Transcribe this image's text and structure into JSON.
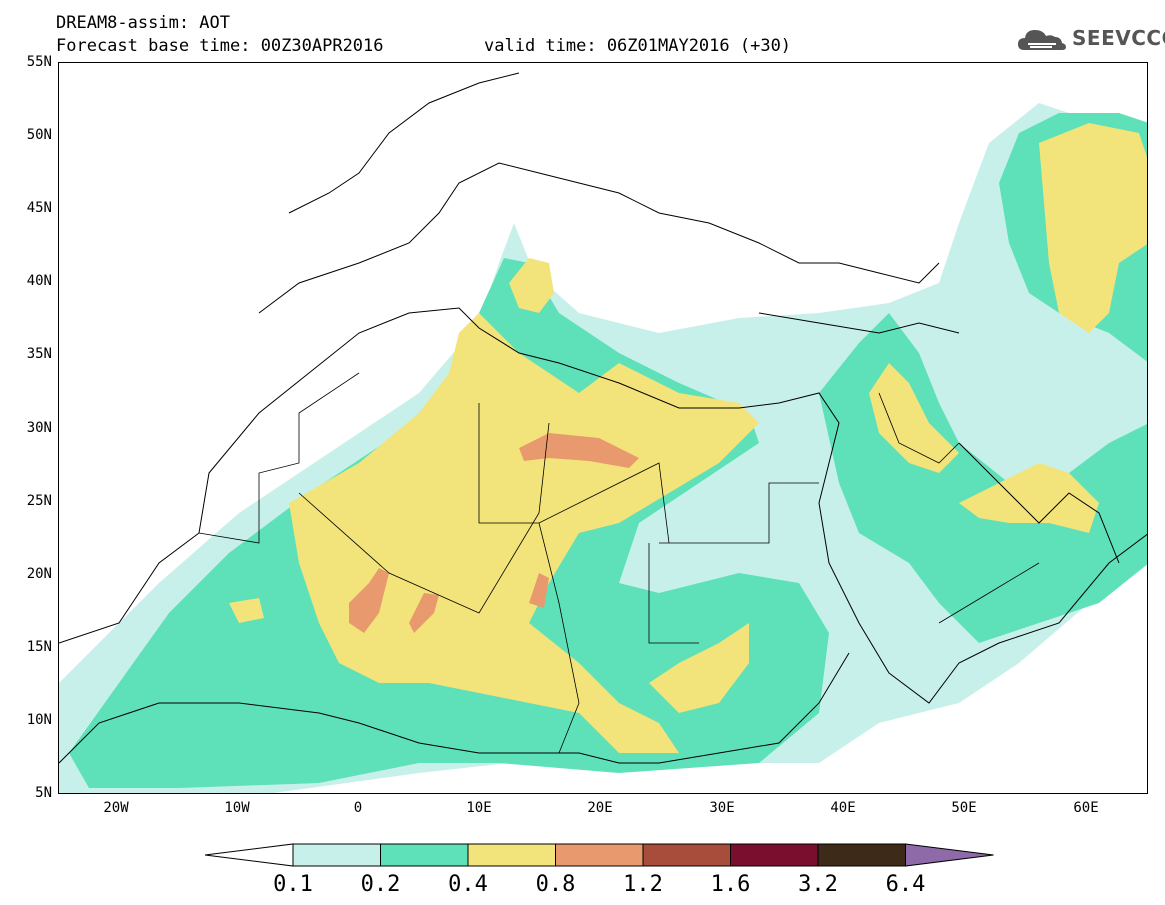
{
  "header": {
    "line1": "DREAM8-assim: AOT",
    "line2_left": "Forecast base time: 00Z30APR2016",
    "line2_right": "valid time: 06Z01MAY2016 (+30)"
  },
  "logo": {
    "text": "SEEVCCC",
    "icon": "cloud-icon"
  },
  "map": {
    "lat_labels": [
      "55N",
      "50N",
      "45N",
      "40N",
      "35N",
      "30N",
      "25N",
      "20N",
      "15N",
      "10N",
      "5N"
    ],
    "lon_labels": [
      "20W",
      "10W",
      "0",
      "10E",
      "20E",
      "30E",
      "40E",
      "50E",
      "60E"
    ],
    "lat_range": [
      5,
      55
    ],
    "lon_range": [
      -25,
      65
    ]
  },
  "colorbar": {
    "labels": [
      "0.1",
      "0.2",
      "0.4",
      "0.8",
      "1.2",
      "1.6",
      "3.2",
      "6.4"
    ],
    "colors": [
      "#c8f0ea",
      "#5ee0b8",
      "#f2e47a",
      "#e89a6e",
      "#a84c3c",
      "#7a0e2e",
      "#3d2a18"
    ],
    "under_color": "#ffffff",
    "over_color": "#8e6aa8"
  }
}
